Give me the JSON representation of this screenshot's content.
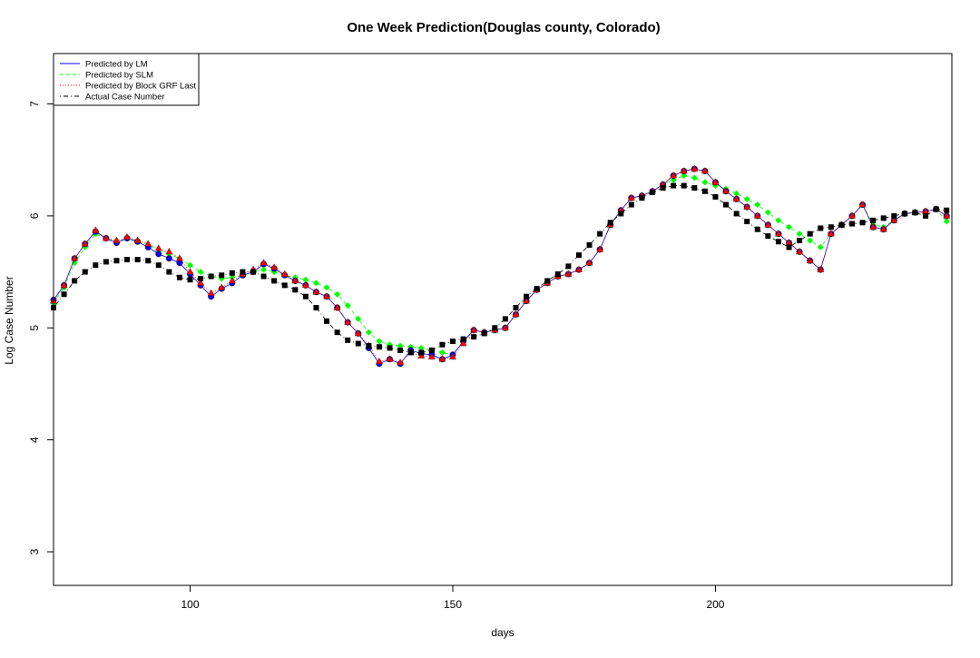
{
  "chart_data": {
    "type": "line",
    "title": "One Week Prediction(Douglas county, Colorado)",
    "xlabel": "days",
    "ylabel": "Log Case Number",
    "xlim": [
      74,
      245
    ],
    "ylim": [
      2.7,
      7.45
    ],
    "xticks": [
      100,
      150,
      200
    ],
    "yticks": [
      3,
      4,
      5,
      6,
      7
    ],
    "grid": false,
    "legend_position": "top-left",
    "x": [
      74,
      76,
      78,
      80,
      82,
      84,
      86,
      88,
      90,
      92,
      94,
      96,
      98,
      100,
      102,
      104,
      106,
      108,
      110,
      112,
      114,
      116,
      118,
      120,
      122,
      124,
      126,
      128,
      130,
      132,
      134,
      136,
      138,
      140,
      142,
      144,
      146,
      148,
      150,
      152,
      154,
      156,
      158,
      160,
      162,
      164,
      166,
      168,
      170,
      172,
      174,
      176,
      178,
      180,
      182,
      184,
      186,
      188,
      190,
      192,
      194,
      196,
      198,
      200,
      202,
      204,
      206,
      208,
      210,
      212,
      214,
      216,
      218,
      220,
      222,
      224,
      226,
      228,
      230,
      232,
      234,
      236,
      238,
      240,
      242,
      244
    ],
    "series": [
      {
        "name": "Predicted by LM",
        "color": "#0000ff",
        "line_style": "solid",
        "marker": "circle",
        "values": [
          5.25,
          5.38,
          5.62,
          5.75,
          5.86,
          5.8,
          5.76,
          5.8,
          5.77,
          5.72,
          5.66,
          5.62,
          5.58,
          5.48,
          5.38,
          5.28,
          5.35,
          5.4,
          5.47,
          5.5,
          5.57,
          5.53,
          5.47,
          5.42,
          5.38,
          5.32,
          5.28,
          5.18,
          5.05,
          4.95,
          4.82,
          4.68,
          4.72,
          4.68,
          4.8,
          4.77,
          4.76,
          4.72,
          4.76,
          4.88,
          4.98,
          4.96,
          4.98,
          5.0,
          5.12,
          5.24,
          5.34,
          5.4,
          5.46,
          5.48,
          5.52,
          5.58,
          5.7,
          5.92,
          6.05,
          6.16,
          6.18,
          6.22,
          6.28,
          6.36,
          6.4,
          6.42,
          6.4,
          6.3,
          6.22,
          6.15,
          6.08,
          6.0,
          5.92,
          5.84,
          5.76,
          5.68,
          5.6,
          5.52,
          5.84,
          5.92,
          6.0,
          6.1,
          5.9,
          5.88,
          5.96,
          6.02,
          6.03,
          6.04,
          6.06,
          6.0
        ]
      },
      {
        "name": "Predicted by SLM",
        "color": "#00ff00",
        "line_style": "dashed",
        "marker": "diamond",
        "values": [
          5.22,
          5.36,
          5.58,
          5.72,
          5.84,
          5.8,
          5.77,
          5.8,
          5.78,
          5.74,
          5.7,
          5.66,
          5.62,
          5.56,
          5.5,
          5.46,
          5.44,
          5.45,
          5.47,
          5.5,
          5.52,
          5.5,
          5.47,
          5.45,
          5.43,
          5.4,
          5.36,
          5.3,
          5.2,
          5.08,
          4.96,
          4.88,
          4.85,
          4.84,
          4.83,
          4.82,
          4.8,
          4.78,
          4.76,
          4.88,
          4.98,
          4.96,
          4.98,
          5.0,
          5.12,
          5.24,
          5.34,
          5.4,
          5.46,
          5.48,
          5.52,
          5.58,
          5.7,
          5.92,
          6.05,
          6.16,
          6.18,
          6.22,
          6.28,
          6.32,
          6.36,
          6.34,
          6.3,
          6.27,
          6.24,
          6.2,
          6.15,
          6.1,
          6.03,
          5.96,
          5.9,
          5.84,
          5.78,
          5.72,
          5.84,
          5.92,
          6.0,
          6.1,
          5.92,
          5.9,
          5.96,
          6.02,
          6.03,
          6.04,
          6.06,
          5.95
        ]
      },
      {
        "name": "Predicted by Block GRF Last",
        "color": "#ff0000",
        "line_style": "dotted",
        "marker": "triangle",
        "values": [
          5.24,
          5.38,
          5.62,
          5.75,
          5.87,
          5.8,
          5.78,
          5.81,
          5.78,
          5.75,
          5.71,
          5.68,
          5.62,
          5.5,
          5.4,
          5.31,
          5.36,
          5.42,
          5.48,
          5.52,
          5.58,
          5.54,
          5.48,
          5.42,
          5.38,
          5.32,
          5.28,
          5.18,
          5.05,
          4.95,
          4.84,
          4.7,
          4.72,
          4.69,
          4.78,
          4.75,
          4.74,
          4.72,
          4.74,
          4.86,
          4.98,
          4.96,
          4.98,
          5.0,
          5.12,
          5.24,
          5.34,
          5.4,
          5.46,
          5.48,
          5.52,
          5.58,
          5.7,
          5.92,
          6.05,
          6.16,
          6.18,
          6.22,
          6.28,
          6.36,
          6.4,
          6.42,
          6.4,
          6.3,
          6.22,
          6.15,
          6.08,
          6.0,
          5.92,
          5.84,
          5.76,
          5.68,
          5.6,
          5.52,
          5.84,
          5.92,
          6.0,
          6.1,
          5.9,
          5.88,
          5.96,
          6.02,
          6.03,
          6.04,
          6.06,
          6.0
        ]
      },
      {
        "name": "Actual Case Number",
        "color": "#000000",
        "line_style": "dotdash",
        "marker": "square",
        "values": [
          5.18,
          5.3,
          5.42,
          5.5,
          5.56,
          5.59,
          5.6,
          5.61,
          5.61,
          5.6,
          5.56,
          5.5,
          5.45,
          5.43,
          5.44,
          5.46,
          5.47,
          5.49,
          5.5,
          5.5,
          5.46,
          5.42,
          5.38,
          5.34,
          5.28,
          5.18,
          5.06,
          4.96,
          4.89,
          4.86,
          4.84,
          4.83,
          4.82,
          4.8,
          4.78,
          4.78,
          4.8,
          4.85,
          4.88,
          4.9,
          4.92,
          4.95,
          5.0,
          5.08,
          5.18,
          5.28,
          5.35,
          5.42,
          5.48,
          5.55,
          5.65,
          5.74,
          5.84,
          5.94,
          6.02,
          6.1,
          6.16,
          6.21,
          6.25,
          6.27,
          6.27,
          6.25,
          6.22,
          6.17,
          6.1,
          6.02,
          5.95,
          5.88,
          5.82,
          5.77,
          5.72,
          5.78,
          5.84,
          5.89,
          5.9,
          5.92,
          5.93,
          5.94,
          5.96,
          5.98,
          6.0,
          6.02,
          6.03,
          6.0,
          6.06,
          6.05
        ]
      }
    ]
  }
}
